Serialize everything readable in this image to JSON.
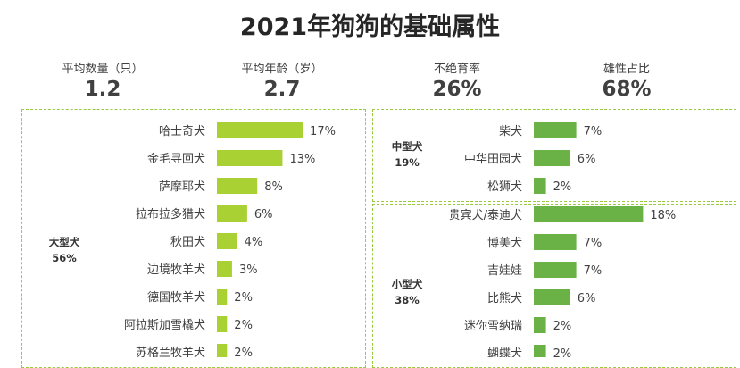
{
  "title": "2021年狗狗的基础属性",
  "stats": [
    {
      "label": "平均数量（只）",
      "value": "1.2"
    },
    {
      "label": "平均年龄（岁）",
      "value": "2.7"
    },
    {
      "label": "不绝育率",
      "value": "26%"
    },
    {
      "label": "雄性占比",
      "value": "68%"
    }
  ],
  "colors": {
    "light_green": "#a9d133",
    "dark_green": "#6ab245",
    "dashed_border": "#9ac93c"
  },
  "chart_data": [
    {
      "type": "bar",
      "group_name": "大型犬",
      "group_share": "56%",
      "categories": [
        "哈士奇犬",
        "金毛寻回犬",
        "萨摩耶犬",
        "拉布拉多猎犬",
        "秋田犬",
        "边境牧羊犬",
        "德国牧羊犬",
        "阿拉斯加雪橇犬",
        "苏格兰牧羊犬"
      ],
      "values": [
        17,
        13,
        8,
        6,
        4,
        3,
        2,
        2,
        2
      ],
      "value_labels": [
        "17%",
        "13%",
        "8%",
        "6%",
        "4%",
        "3%",
        "2%",
        "2%",
        "2%"
      ],
      "unit": "%"
    },
    {
      "type": "bar",
      "group_name": "中型犬",
      "group_share": "19%",
      "categories": [
        "柴犬",
        "中华田园犬",
        "松狮犬"
      ],
      "values": [
        7,
        6,
        2
      ],
      "value_labels": [
        "7%",
        "6%",
        "2%"
      ],
      "unit": "%"
    },
    {
      "type": "bar",
      "group_name": "小型犬",
      "group_share": "38%",
      "categories": [
        "贵宾犬/泰迪犬",
        "博美犬",
        "吉娃娃",
        "比熊犬",
        "迷你雪纳瑞",
        "蝴蝶犬"
      ],
      "values": [
        18,
        7,
        7,
        6,
        2,
        2
      ],
      "value_labels": [
        "18%",
        "7%",
        "7%",
        "6%",
        "2%",
        "2%"
      ],
      "unit": "%"
    }
  ]
}
